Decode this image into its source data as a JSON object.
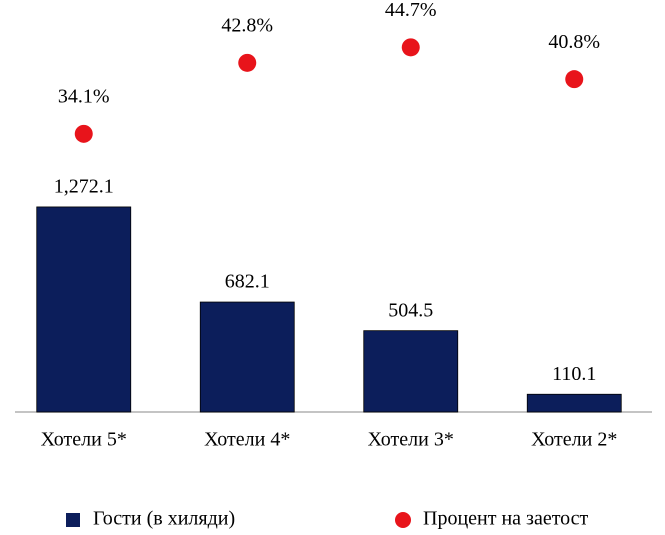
{
  "chart_data": {
    "type": "bar",
    "categories": [
      "Хотели 5*",
      "Хотели 4*",
      "Хотели 3*",
      "Хотели 2*"
    ],
    "series": [
      {
        "name": "Гости (в хиляди)",
        "type": "bar",
        "color": "#0c1e5b",
        "values": [
          1272.1,
          682.1,
          504.5,
          110.1
        ],
        "value_labels": [
          "1,272.1",
          "682.1",
          "504.5",
          "110.1"
        ]
      },
      {
        "name": "Процент на заетост",
        "type": "scatter",
        "axis": "y2",
        "color": "#e8141b",
        "values": [
          34.1,
          42.8,
          44.7,
          40.8
        ],
        "value_labels": [
          "34.1%",
          "42.8%",
          "44.7%",
          "40.8%"
        ]
      }
    ],
    "ylim": [
      0,
      2500
    ],
    "y2lim": [
      0,
      49.4
    ],
    "legend": "bottom"
  }
}
